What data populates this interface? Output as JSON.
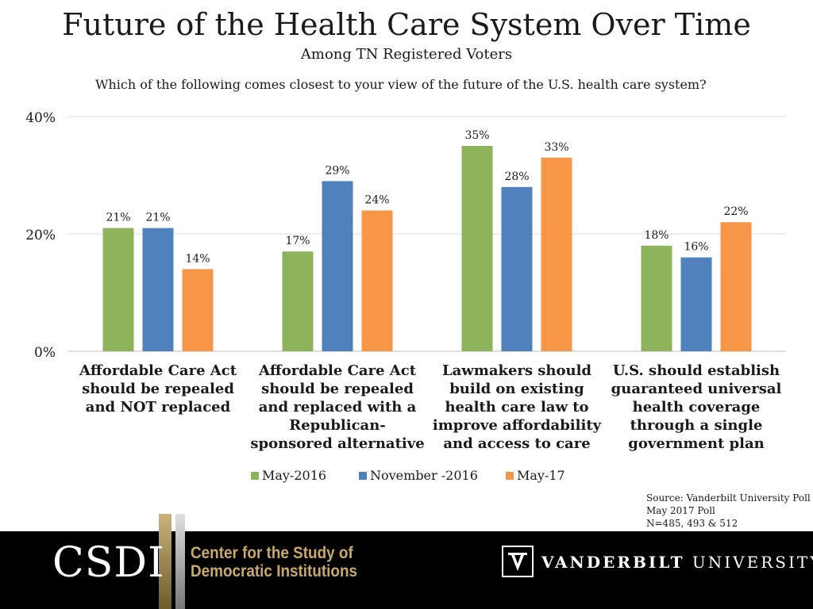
{
  "header": {
    "title": "Future of the Health Care System Over Time",
    "subtitle": "Among TN Registered Voters",
    "question": "Which of the following comes closest to your view of the future of the U.S. health care system?"
  },
  "chart_data": {
    "type": "bar",
    "categories": [
      "Affordable Care Act should be repealed and NOT replaced",
      "Affordable Care Act should be repealed and replaced with a Republican-sponsored alternative",
      "Lawmakers should build on existing health care law to improve affordability and access to care",
      "U.S. should establish guaranteed universal health coverage through a single government plan"
    ],
    "category_lines": [
      [
        "Affordable Care Act",
        "should be repealed",
        "and NOT replaced"
      ],
      [
        "Affordable Care Act",
        "should be repealed",
        "and replaced with a",
        "Republican-",
        "sponsored alternative"
      ],
      [
        "Lawmakers should",
        "build on existing",
        "health care law to",
        "improve affordability",
        "and access to care"
      ],
      [
        "U.S. should establish",
        "guaranteed universal",
        "health coverage",
        "through a single",
        "government plan"
      ]
    ],
    "series": [
      {
        "name": "May-2016",
        "color": "#8db45a",
        "values": [
          21,
          17,
          35,
          18
        ],
        "labels": [
          "21%",
          "17%",
          "35%",
          "18%"
        ]
      },
      {
        "name": "November -2016",
        "color": "#4f81bd",
        "values": [
          21,
          29,
          28,
          16
        ],
        "labels": [
          "21%",
          "29%",
          "28%",
          "16%"
        ]
      },
      {
        "name": "May-17",
        "color": "#f79646",
        "values": [
          14,
          24,
          33,
          22
        ],
        "labels": [
          "14%",
          "24%",
          "33%",
          "22%"
        ]
      }
    ],
    "ylim": [
      0,
      40
    ],
    "yticks": [
      0,
      20,
      40
    ],
    "ytick_labels": [
      "0%",
      "20%",
      "40%"
    ],
    "legend_position": "bottom",
    "grid": true
  },
  "source": {
    "line1": "Source: Vanderbilt University Poll",
    "line2": "May 2017 Poll",
    "line3": "N=485, 493 & 512"
  },
  "footer": {
    "csdi_abbrev": "CSDI",
    "csdi_line1": "Center for the Study of",
    "csdi_line2": "Democratic Institutions",
    "vu_name_bold": "VANDERBILT",
    "vu_name_rest": " UNIVERSITY"
  }
}
